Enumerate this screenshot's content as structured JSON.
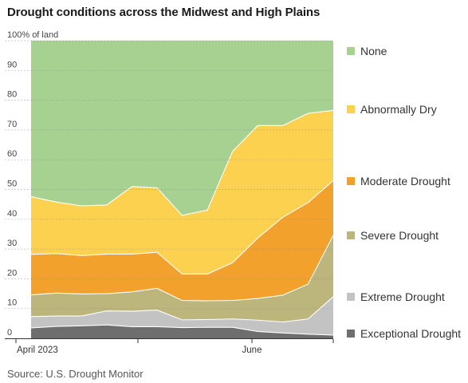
{
  "chart_data": {
    "type": "area",
    "stacked": true,
    "title": "Drought conditions across the Midwest and High Plains",
    "source": "Source: U.S. Drought Monitor",
    "ylabel": "% of land",
    "ylim": [
      0,
      100
    ],
    "y_ticks": [
      0,
      10,
      20,
      30,
      40,
      50,
      60,
      70,
      80,
      90,
      100
    ],
    "y_tick_labels": [
      "0",
      "10",
      "20",
      "30",
      "40",
      "50",
      "60",
      "70",
      "80",
      "90",
      "100% of land"
    ],
    "x_tick_labels": [
      "April 2023",
      "",
      "June",
      ""
    ],
    "grid": true,
    "legend_position": "right",
    "dates": [
      "Apr 4",
      "Apr 11",
      "Apr 18",
      "Apr 25",
      "May 2",
      "May 9",
      "May 16",
      "May 23",
      "May 30",
      "Jun 6",
      "Jun 13",
      "Jun 20",
      "Jun 27"
    ],
    "series": [
      {
        "name": "Exceptional Drought",
        "color": "#6e6e6e",
        "values": [
          3.5,
          4,
          4.2,
          4.5,
          3.9,
          3.9,
          3.6,
          3.7,
          3.7,
          2.3,
          1.8,
          1.4,
          1.1
        ]
      },
      {
        "name": "Extreme Drought",
        "color": "#c3c3c3",
        "values": [
          3.8,
          3.5,
          3.3,
          4.7,
          5.2,
          5.6,
          2.6,
          2.6,
          2.8,
          3.8,
          3.7,
          5.1,
          12.9
        ]
      },
      {
        "name": "Severe Drought",
        "color": "#bcb57c",
        "values": [
          7.3,
          7.7,
          7.4,
          5.8,
          6.5,
          7.3,
          6.5,
          6.3,
          6.2,
          7.3,
          9,
          11.7,
          20.6
        ]
      },
      {
        "name": "Moderate Drought",
        "color": "#f2a12c",
        "values": [
          13.6,
          13.3,
          12.9,
          13.3,
          12.7,
          12.1,
          8.9,
          9,
          12.7,
          20.3,
          26.2,
          27.4,
          18.4
        ]
      },
      {
        "name": "Abnormally Dry",
        "color": "#fcd150",
        "values": [
          19.4,
          17.3,
          16.7,
          16.5,
          22.7,
          21.7,
          19.7,
          21.5,
          37.4,
          37.8,
          30.8,
          30,
          23.6
        ]
      },
      {
        "name": "None",
        "color": "#a6d191",
        "values": [
          52.4,
          54.2,
          55.5,
          55.2,
          49,
          49.4,
          58.7,
          56.9,
          37.2,
          28.5,
          28.5,
          24.4,
          23.4
        ]
      }
    ]
  }
}
